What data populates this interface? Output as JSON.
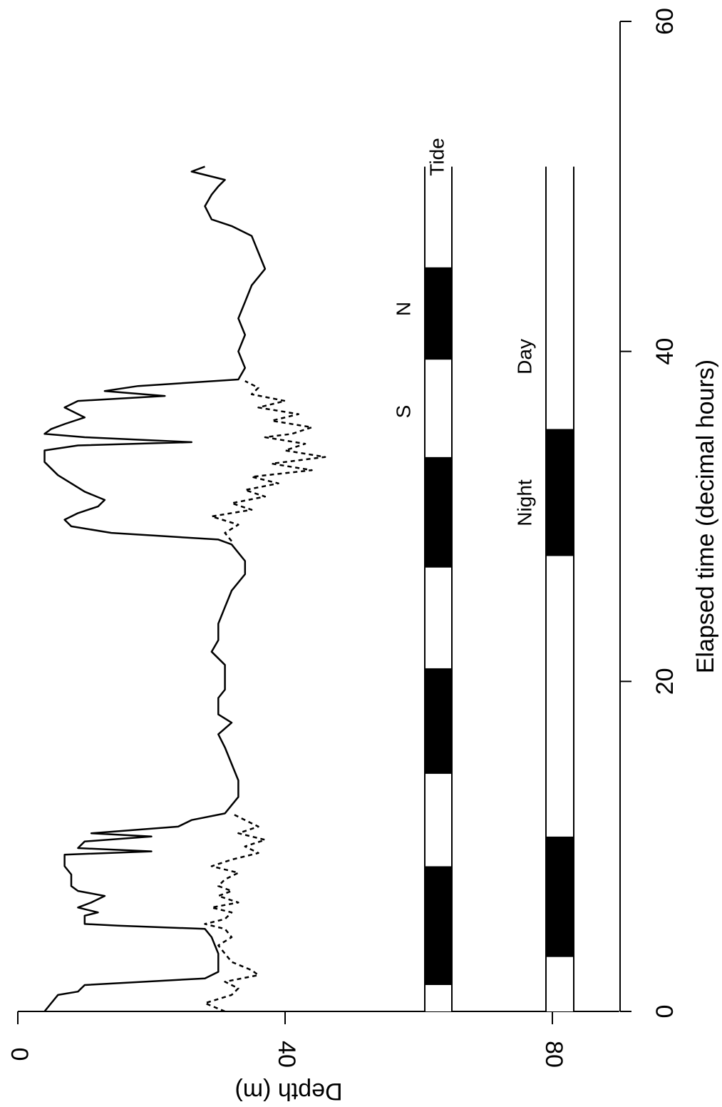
{
  "chart_data": {
    "type": "line",
    "title": "",
    "xlabel": "Elapsed time (decimal hours)",
    "ylabel": "Depth (m)",
    "xlim": [
      0,
      60
    ],
    "ylim": [
      0,
      90
    ],
    "y_inverted": true,
    "x_ticks": [
      0,
      20,
      40,
      60
    ],
    "y_ticks": [
      0,
      40,
      80
    ],
    "grid": false,
    "series": [
      {
        "style": "solid",
        "points": [
          [
            0.0,
            4
          ],
          [
            0.5,
            5
          ],
          [
            1.0,
            6
          ],
          [
            1.2,
            9
          ],
          [
            1.6,
            10
          ],
          [
            2.0,
            28
          ],
          [
            2.4,
            30
          ],
          [
            3.5,
            30
          ],
          [
            4.5,
            29
          ],
          [
            5.0,
            28
          ],
          [
            5.2,
            15
          ],
          [
            5.3,
            10
          ],
          [
            5.8,
            10
          ],
          [
            6.0,
            12
          ],
          [
            6.3,
            9
          ],
          [
            6.6,
            11
          ],
          [
            7.0,
            13
          ],
          [
            7.3,
            9
          ],
          [
            7.6,
            8
          ],
          [
            8.3,
            8
          ],
          [
            8.8,
            7
          ],
          [
            9.5,
            7
          ],
          [
            9.7,
            20
          ],
          [
            9.9,
            9
          ],
          [
            10.3,
            10
          ],
          [
            10.6,
            20
          ],
          [
            10.8,
            11
          ],
          [
            11.2,
            24
          ],
          [
            11.6,
            26
          ],
          [
            12.0,
            31
          ],
          [
            12.5,
            32
          ],
          [
            13.0,
            33
          ],
          [
            14.0,
            33
          ],
          [
            15.0,
            32
          ],
          [
            16.0,
            31
          ],
          [
            16.8,
            30
          ],
          [
            17.5,
            32
          ],
          [
            18.0,
            30
          ],
          [
            19.0,
            30
          ],
          [
            19.5,
            31
          ],
          [
            20.0,
            31
          ],
          [
            21.0,
            31
          ],
          [
            21.8,
            29
          ],
          [
            22.5,
            30
          ],
          [
            23.5,
            30
          ],
          [
            24.5,
            31
          ],
          [
            25.5,
            32
          ],
          [
            26.5,
            34
          ],
          [
            27.3,
            34
          ],
          [
            28.3,
            32
          ],
          [
            28.6,
            30
          ],
          [
            28.8,
            22
          ],
          [
            29.0,
            14
          ],
          [
            29.4,
            8
          ],
          [
            29.8,
            7
          ],
          [
            30.2,
            9
          ],
          [
            30.6,
            12
          ],
          [
            31.0,
            13
          ],
          [
            31.5,
            10
          ],
          [
            32.0,
            8
          ],
          [
            32.5,
            6
          ],
          [
            33.3,
            4
          ],
          [
            34.0,
            4
          ],
          [
            34.3,
            9
          ],
          [
            34.5,
            26
          ],
          [
            34.8,
            10
          ],
          [
            35.0,
            4
          ],
          [
            35.3,
            5
          ],
          [
            35.6,
            7
          ],
          [
            36.0,
            10
          ],
          [
            36.6,
            7
          ],
          [
            37.0,
            9
          ],
          [
            37.3,
            22
          ],
          [
            37.6,
            13
          ],
          [
            37.9,
            18
          ],
          [
            38.3,
            33
          ],
          [
            39.0,
            34
          ],
          [
            40.0,
            33
          ],
          [
            41.0,
            34
          ],
          [
            42.0,
            33
          ],
          [
            43.0,
            34
          ],
          [
            44.0,
            35
          ],
          [
            45.0,
            37
          ],
          [
            46.0,
            36
          ],
          [
            47.0,
            35
          ],
          [
            47.6,
            32
          ],
          [
            48.0,
            29
          ],
          [
            48.8,
            28
          ],
          [
            49.5,
            29
          ],
          [
            50.0,
            30
          ],
          [
            50.4,
            31
          ],
          [
            50.9,
            26
          ],
          [
            51.2,
            28
          ]
        ]
      },
      {
        "style": "dashed",
        "points": [
          [
            0.0,
            31
          ],
          [
            0.5,
            28
          ],
          [
            1.0,
            32
          ],
          [
            1.4,
            33
          ],
          [
            1.8,
            31
          ],
          [
            2.2,
            36
          ],
          [
            2.5,
            35
          ],
          [
            3.0,
            32
          ],
          [
            3.5,
            31
          ],
          [
            4.0,
            30
          ],
          [
            4.5,
            32
          ],
          [
            5.0,
            31
          ],
          [
            5.3,
            28
          ],
          [
            5.6,
            31
          ],
          [
            6.0,
            32
          ],
          [
            6.3,
            29
          ],
          [
            6.6,
            33
          ],
          [
            7.0,
            30
          ],
          [
            7.3,
            32
          ],
          [
            7.6,
            30
          ],
          [
            8.0,
            31
          ],
          [
            8.4,
            33
          ],
          [
            8.8,
            29
          ],
          [
            9.2,
            32
          ],
          [
            9.6,
            36
          ],
          [
            10.0,
            34
          ],
          [
            10.4,
            37
          ],
          [
            10.8,
            33
          ],
          [
            11.2,
            36
          ],
          [
            11.6,
            34
          ],
          [
            12.0,
            32
          ],
          [
            28.5,
            32
          ],
          [
            29.0,
            31
          ],
          [
            29.5,
            33
          ],
          [
            30.0,
            29
          ],
          [
            30.4,
            35
          ],
          [
            30.8,
            32
          ],
          [
            31.2,
            37
          ],
          [
            31.6,
            34
          ],
          [
            32.0,
            39
          ],
          [
            32.4,
            35
          ],
          [
            32.8,
            44
          ],
          [
            33.2,
            38
          ],
          [
            33.6,
            46
          ],
          [
            34.0,
            40
          ],
          [
            34.4,
            43
          ],
          [
            34.8,
            37
          ],
          [
            35.0,
            41
          ],
          [
            35.4,
            44
          ],
          [
            35.8,
            38
          ],
          [
            36.2,
            42
          ],
          [
            36.6,
            36
          ],
          [
            37.0,
            40
          ],
          [
            37.4,
            35
          ],
          [
            37.8,
            36
          ],
          [
            38.2,
            34
          ]
        ]
      }
    ],
    "annotations": [
      "S",
      "N",
      "Tide",
      "Night",
      "Day"
    ],
    "tide_bands": [
      {
        "start": 0.0,
        "end": 1.6,
        "fill": "white"
      },
      {
        "start": 1.6,
        "end": 8.8,
        "fill": "black"
      },
      {
        "start": 8.8,
        "end": 14.4,
        "fill": "white"
      },
      {
        "start": 14.4,
        "end": 20.8,
        "fill": "black"
      },
      {
        "start": 20.8,
        "end": 26.9,
        "fill": "white"
      },
      {
        "start": 26.9,
        "end": 33.6,
        "fill": "black"
      },
      {
        "start": 33.6,
        "end": 39.5,
        "fill": "white"
      },
      {
        "start": 39.5,
        "end": 45.1,
        "fill": "black"
      },
      {
        "start": 45.1,
        "end": 51.2,
        "fill": "white"
      }
    ],
    "daynight_bands": [
      {
        "start": 0.0,
        "end": 3.3,
        "fill": "white"
      },
      {
        "start": 3.3,
        "end": 10.6,
        "fill": "black"
      },
      {
        "start": 10.6,
        "end": 27.6,
        "fill": "white"
      },
      {
        "start": 27.6,
        "end": 35.3,
        "fill": "black"
      },
      {
        "start": 35.3,
        "end": 51.2,
        "fill": "white"
      }
    ]
  }
}
